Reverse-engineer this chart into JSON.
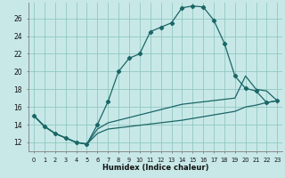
{
  "xlabel": "Humidex (Indice chaleur)",
  "background_color": "#c8e8e8",
  "grid_color": "#90c8c0",
  "line_color": "#1a6666",
  "xlim": [
    -0.5,
    23.5
  ],
  "ylim": [
    11.0,
    27.8
  ],
  "xticks": [
    0,
    1,
    2,
    3,
    4,
    5,
    6,
    7,
    8,
    9,
    10,
    11,
    12,
    13,
    14,
    15,
    16,
    17,
    18,
    19,
    20,
    21,
    22,
    23
  ],
  "yticks": [
    12,
    14,
    16,
    18,
    20,
    22,
    24,
    26
  ],
  "curve1_x": [
    0,
    1,
    2,
    3,
    4,
    5,
    6,
    7,
    8,
    9,
    10,
    11,
    12,
    13,
    14,
    15,
    16,
    17,
    18,
    19,
    20,
    21,
    22,
    23
  ],
  "curve1_y": [
    15.0,
    13.8,
    13.0,
    12.5,
    12.0,
    11.8,
    14.0,
    16.6,
    20.0,
    21.5,
    22.0,
    24.5,
    25.0,
    25.5,
    27.2,
    27.4,
    27.3,
    25.8,
    23.2,
    19.5,
    18.1,
    17.8,
    16.5,
    16.7
  ],
  "curve2_x": [
    0,
    1,
    2,
    3,
    4,
    5,
    6,
    7,
    14,
    19,
    20,
    21,
    22,
    23
  ],
  "curve2_y": [
    15.0,
    13.8,
    13.0,
    12.5,
    12.0,
    11.8,
    13.5,
    14.2,
    16.3,
    17.0,
    19.5,
    18.0,
    17.8,
    16.7
  ],
  "curve3_x": [
    0,
    1,
    2,
    3,
    4,
    5,
    6,
    7,
    14,
    19,
    20,
    21,
    22,
    23
  ],
  "curve3_y": [
    15.0,
    13.8,
    13.0,
    12.5,
    12.0,
    11.8,
    13.0,
    13.5,
    14.5,
    15.5,
    16.0,
    16.2,
    16.5,
    16.7
  ]
}
